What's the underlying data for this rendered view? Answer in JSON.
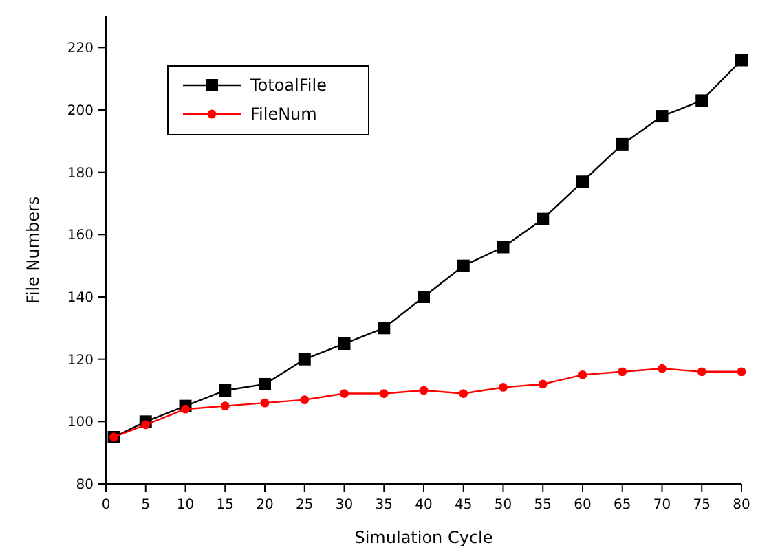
{
  "chart_data": {
    "type": "line",
    "xlabel": "Simulation Cycle",
    "ylabel": "File Numbers",
    "x": [
      1,
      5,
      10,
      15,
      20,
      25,
      30,
      35,
      40,
      45,
      50,
      55,
      60,
      65,
      70,
      75,
      80
    ],
    "series": [
      {
        "name": "TotoalFile",
        "color": "#000000",
        "marker": "square",
        "values": [
          95,
          100,
          105,
          110,
          112,
          120,
          125,
          130,
          140,
          150,
          156,
          165,
          177,
          189,
          198,
          203,
          216
        ]
      },
      {
        "name": "FileNum",
        "color": "#ff0000",
        "marker": "circle",
        "values": [
          95,
          99,
          104,
          105,
          106,
          107,
          109,
          109,
          110,
          109,
          111,
          112,
          115,
          116,
          117,
          116,
          116
        ]
      }
    ],
    "xlim": [
      0,
      80
    ],
    "xticks": [
      0,
      5,
      10,
      15,
      20,
      25,
      30,
      35,
      40,
      45,
      50,
      55,
      60,
      65,
      70,
      75,
      80
    ],
    "ylim": [
      80,
      230
    ],
    "yticks": [
      80,
      100,
      120,
      140,
      160,
      180,
      200,
      220
    ],
    "grid": false,
    "legend": "top left",
    "line_style": "solid"
  }
}
